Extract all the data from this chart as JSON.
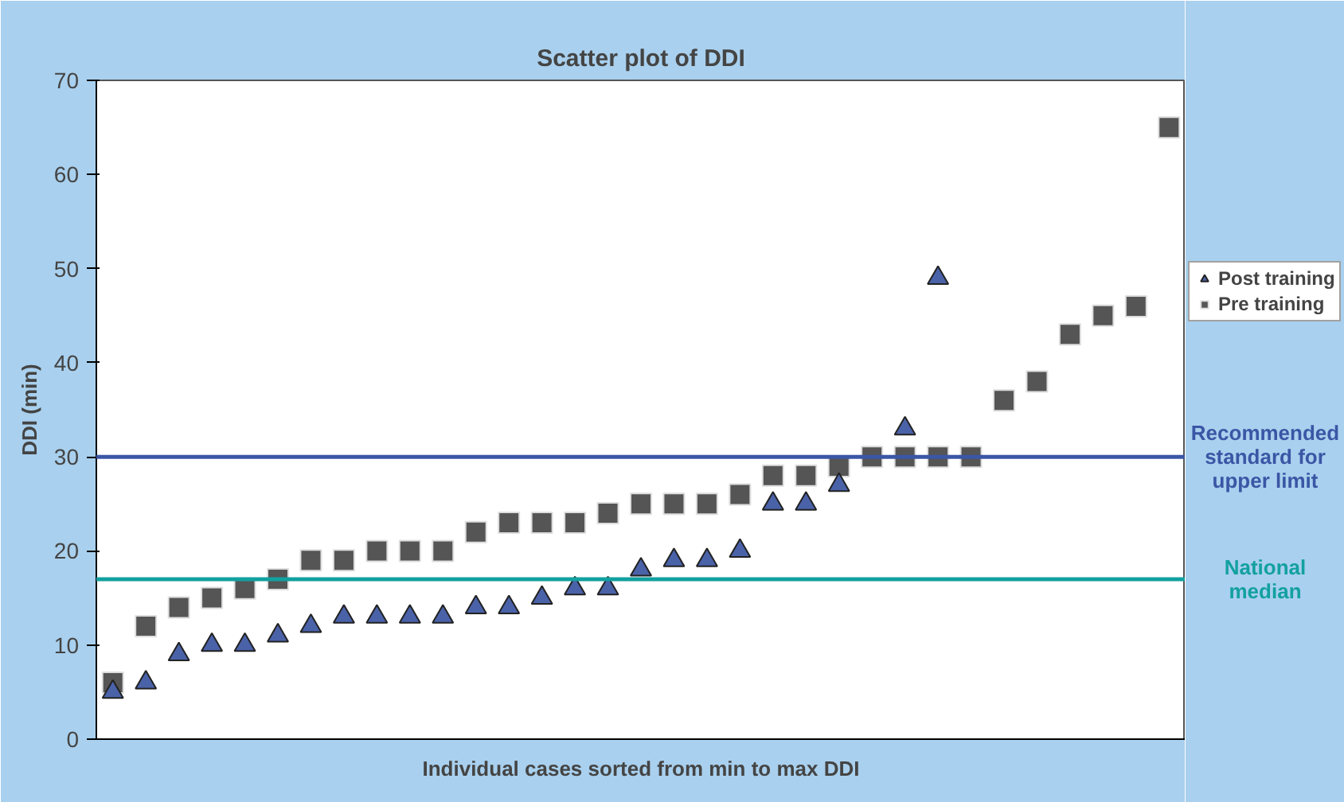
{
  "chart_data": {
    "type": "scatter",
    "title": "Scatter plot of DDI",
    "xlabel": "Individual cases sorted from min to max DDI",
    "ylabel": "DDI (min)",
    "categories": [
      null,
      null,
      null,
      null,
      null,
      null,
      null,
      null,
      null,
      null,
      null,
      null,
      null,
      null,
      null,
      null,
      null,
      null,
      null,
      null,
      null,
      null,
      null,
      null,
      null,
      null,
      null,
      null,
      null,
      null,
      null,
      null,
      null
    ],
    "series": [
      {
        "name": "Post training",
        "color": "#4a62a8",
        "marker": "triangle",
        "values": [
          5,
          6,
          9,
          10,
          10,
          11,
          12,
          13,
          13,
          13,
          13,
          14,
          14,
          15,
          16,
          16,
          18,
          19,
          19,
          20,
          25,
          25,
          27,
          null,
          33,
          49,
          null,
          null,
          null,
          null,
          null,
          null,
          null
        ]
      },
      {
        "name": "Pre training",
        "color": "#555555",
        "marker": "square",
        "values": [
          6,
          12,
          14,
          15,
          16,
          17,
          19,
          19,
          20,
          20,
          20,
          22,
          23,
          23,
          23,
          24,
          25,
          25,
          25,
          26,
          28,
          28,
          29,
          30,
          30,
          30,
          30,
          36,
          38,
          43,
          45,
          46,
          65
        ]
      }
    ],
    "ylim": [
      0,
      70
    ],
    "yticks": [
      0,
      10,
      20,
      30,
      40,
      50,
      60,
      70
    ],
    "tick_labels": "y",
    "grid": false,
    "legend": "right",
    "ref_lines": [
      {
        "axis": "y",
        "value": 30,
        "label": "Recommended standard for upper limit",
        "color": "#3a56a5"
      },
      {
        "axis": "y",
        "value": 17,
        "label": "National median",
        "color": "#13a0a0"
      }
    ]
  }
}
